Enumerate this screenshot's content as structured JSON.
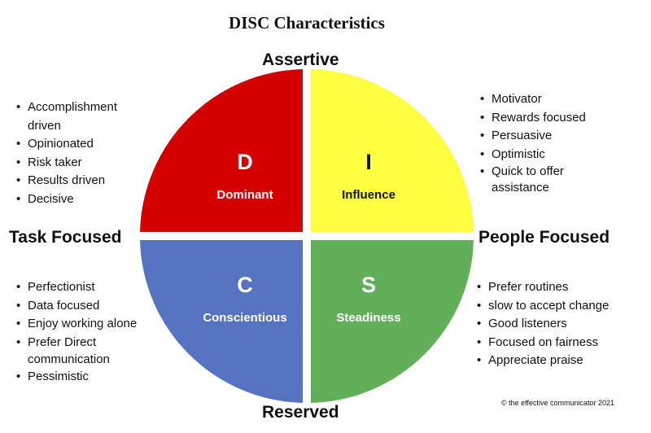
{
  "title": "DISC Characteristics",
  "axes": {
    "top": "Assertive",
    "bottom": "Reserved",
    "left": "Task Focused",
    "right": "People Focused"
  },
  "quadrants": [
    {
      "letter": "D",
      "label": "Dominant",
      "color": "#d40000",
      "text_color": "#ffffff",
      "traits": [
        "Accomplishment driven",
        "Opinionated",
        "Risk taker",
        "Results driven",
        "Decisive"
      ]
    },
    {
      "letter": "I",
      "label": "Influence",
      "color": "#ffff42",
      "text_color": "#111111",
      "traits": [
        "Motivator",
        "Rewards focused",
        "Persuasive",
        "Optimistic",
        "Quick to offer assistance"
      ]
    },
    {
      "letter": "C",
      "label": "Conscientious",
      "color": "#5673c1",
      "text_color": "#ffffff",
      "traits": [
        "Perfectionist",
        "Data focused",
        "Enjoy working alone",
        "Prefer Direct communication",
        "Pessimistic"
      ]
    },
    {
      "letter": "S",
      "label": "Steadiness",
      "color": "#63ae59",
      "text_color": "#ffffff",
      "traits": [
        "Prefer  routines",
        "slow to accept change",
        "Good listeners",
        "Focused on fairness",
        "Appreciate praise"
      ]
    }
  ],
  "copyright": "© the effective communicator 2021"
}
